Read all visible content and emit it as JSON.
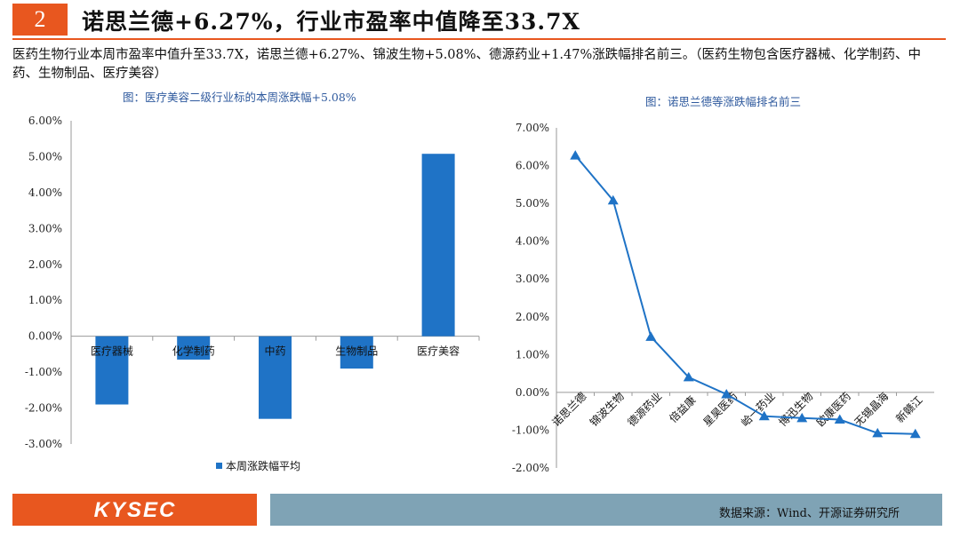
{
  "header": {
    "number": "2",
    "title": "诺思兰德+6.27%，行业市盈率中值降至33.7X"
  },
  "description": "医药生物行业本周市盈率中值升至33.7X，诺思兰德+6.27%、锦波生物+5.08%、德源药业+1.47%涨跌幅排名前三。（医药生物包含医疗器械、化学制药、中药、生物制品、医疗美容）",
  "chart_data": [
    {
      "type": "bar",
      "caption": "图：医疗美容二级行业标的本周涨跌幅+5.08%",
      "categories": [
        "医疗器械",
        "化学制药",
        "中药",
        "生物制品",
        "医疗美容"
      ],
      "series": [
        {
          "name": "本周涨跌幅平均",
          "values": [
            -1.9,
            -0.65,
            -2.3,
            -0.9,
            5.08
          ]
        }
      ],
      "ylim": [
        -3,
        6
      ],
      "yticks": [
        "-3.00%",
        "-2.00%",
        "-1.00%",
        "0.00%",
        "1.00%",
        "2.00%",
        "3.00%",
        "4.00%",
        "5.00%",
        "6.00%"
      ],
      "legend": "bottom",
      "color": "#1f73c6"
    },
    {
      "type": "line",
      "caption": "图：诺思兰德等涨跌幅排名前三",
      "categories": [
        "诺思兰德",
        "锦波生物",
        "德源药业",
        "倍益康",
        "星昊医药",
        "峆一药业",
        "博迅生物",
        "欧康医药",
        "无锡晶海",
        "新赣江"
      ],
      "values": [
        6.27,
        5.08,
        1.47,
        0.4,
        -0.05,
        -0.63,
        -0.68,
        -0.72,
        -1.08,
        -1.1
      ],
      "ylim": [
        -2,
        7
      ],
      "yticks": [
        "-2.00%",
        "-1.00%",
        "0.00%",
        "1.00%",
        "2.00%",
        "3.00%",
        "4.00%",
        "5.00%",
        "6.00%",
        "7.00%"
      ],
      "marker": "triangle",
      "color": "#1f73c6"
    }
  ],
  "footer": {
    "logo": "KYSEC",
    "source": "数据来源：Wind、开源证券研究所"
  }
}
